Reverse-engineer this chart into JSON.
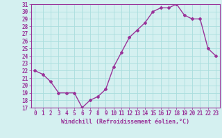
{
  "x": [
    0,
    1,
    2,
    3,
    4,
    5,
    6,
    7,
    8,
    9,
    10,
    11,
    12,
    13,
    14,
    15,
    16,
    17,
    18,
    19,
    20,
    21,
    22,
    23
  ],
  "y": [
    22.0,
    21.5,
    20.5,
    19.0,
    19.0,
    19.0,
    17.0,
    18.0,
    18.5,
    19.5,
    22.5,
    24.5,
    26.5,
    27.5,
    28.5,
    30.0,
    30.5,
    30.5,
    31.0,
    29.5,
    29.0,
    29.0,
    25.0,
    24.0
  ],
  "line_color": "#993399",
  "marker": "D",
  "marker_size": 2,
  "bg_color": "#d4f0f0",
  "grid_color": "#aadddd",
  "ylim": [
    17,
    31
  ],
  "yticks": [
    17,
    18,
    19,
    20,
    21,
    22,
    23,
    24,
    25,
    26,
    27,
    28,
    29,
    30,
    31
  ],
  "xticks": [
    0,
    1,
    2,
    3,
    4,
    5,
    6,
    7,
    8,
    9,
    10,
    11,
    12,
    13,
    14,
    15,
    16,
    17,
    18,
    19,
    20,
    21,
    22,
    23
  ],
  "xlabel": "Windchill (Refroidissement éolien,°C)",
  "xlabel_fontsize": 6.0,
  "tick_fontsize": 5.5,
  "line_width": 1.0,
  "spine_color": "#993399",
  "xlim": [
    -0.5,
    23.5
  ]
}
